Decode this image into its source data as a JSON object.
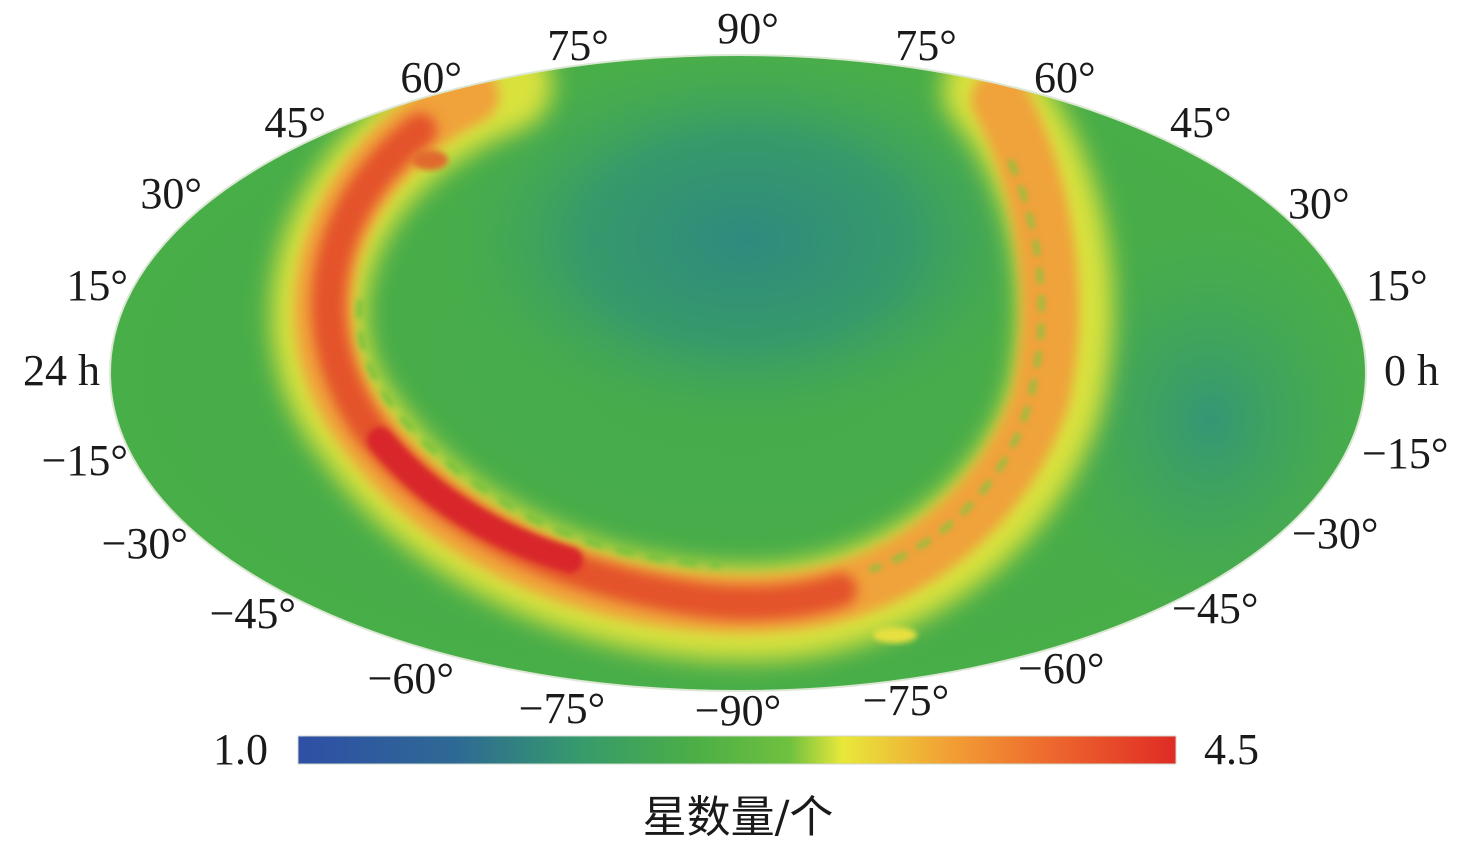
{
  "chart_data": {
    "type": "heatmap",
    "projection": "Hammer-Aitoff (all-sky)",
    "title": "",
    "left_edge_label": "24 h",
    "right_edge_label": "0 h",
    "left_labels": [
      "60°",
      "45°",
      "30°",
      "15°",
      "−15°",
      "−30°",
      "−45°",
      "−60°"
    ],
    "right_labels": [
      "60°",
      "45°",
      "30°",
      "15°",
      "−15°",
      "−30°",
      "−45°",
      "−60°"
    ],
    "top_labels": [
      "75°",
      "90°",
      "75°"
    ],
    "bottom_labels": [
      "−75°",
      "−90°",
      "−75°"
    ],
    "colorbar": {
      "min": 1.0,
      "max": 4.5,
      "min_label": "1.0",
      "max_label": "4.5",
      "title": "星数量/个",
      "colors": [
        "#2f4fa6",
        "#2f7f88",
        "#3fa34a",
        "#5bbb3e",
        "#e8e83a",
        "#f2a035",
        "#ec6a2c",
        "#df2b25"
      ]
    },
    "regions": [
      {
        "name": "north-polar-cap",
        "value": 1.6
      },
      {
        "name": "background-sky",
        "value": 2.3
      },
      {
        "name": "galactic-band",
        "value": 3.8
      },
      {
        "name": "galactic-core",
        "value": 4.4
      }
    ]
  }
}
